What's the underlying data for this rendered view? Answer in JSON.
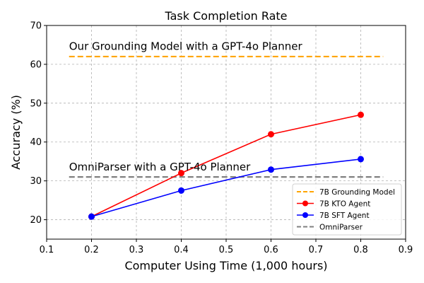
{
  "chart_data": {
    "type": "line",
    "title": "Task Completion Rate",
    "xlabel": "Computer Using Time (1,000 hours)",
    "ylabel": "Accuracy (%)",
    "xlim": [
      0.1,
      0.9
    ],
    "ylim": [
      15,
      70
    ],
    "x_ticks": [
      "0.1",
      "0.2",
      "0.3",
      "0.4",
      "0.5",
      "0.6",
      "0.7",
      "0.8",
      "0.9"
    ],
    "y_ticks": [
      "20",
      "30",
      "40",
      "50",
      "60",
      "70"
    ],
    "grid": true,
    "legend_position": "bottom-right",
    "series": [
      {
        "name": "7B KTO Agent",
        "color": "#ff0000",
        "marker": "circle",
        "x": [
          0.2,
          0.4,
          0.6,
          0.8
        ],
        "y": [
          20.8,
          32.0,
          42.0,
          47.0
        ]
      },
      {
        "name": "7B SFT Agent",
        "color": "#0000ff",
        "marker": "circle",
        "x": [
          0.2,
          0.4,
          0.6,
          0.8
        ],
        "y": [
          20.8,
          27.5,
          32.9,
          35.6
        ]
      }
    ],
    "reference_lines": [
      {
        "name": "7B Grounding Model",
        "color": "#ffa500",
        "style": "dashed",
        "y": 62.0,
        "x_range": [
          0.15,
          0.85
        ]
      },
      {
        "name": "OmniParser",
        "color": "#808080",
        "style": "dashed",
        "y": 31.0,
        "x_range": [
          0.15,
          0.85
        ]
      }
    ],
    "annotations": [
      {
        "text": "Our Grounding Model with a GPT-4o Planner",
        "x": 0.15,
        "y": 63.7
      },
      {
        "text": "OmniParser with a GPT-4o Planner",
        "x": 0.15,
        "y": 32.7
      }
    ],
    "legend_order": [
      "7B Grounding Model",
      "7B KTO Agent",
      "7B SFT Agent",
      "OmniParser"
    ]
  }
}
